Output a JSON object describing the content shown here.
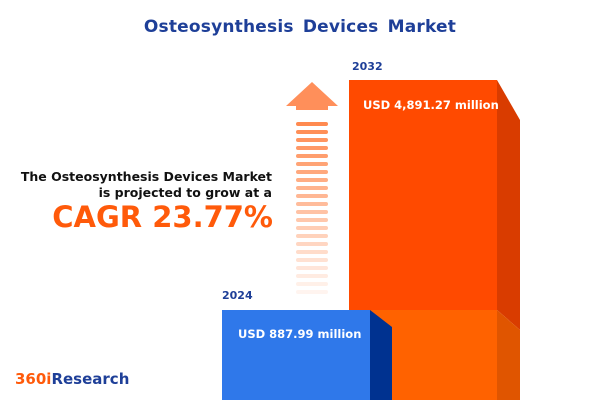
{
  "title": "Osteosynthesis Devices Market",
  "description": {
    "line1": "The Osteosynthesis Devices Market",
    "line2": "is projected to grow at a",
    "cagr": "CAGR 23.77%"
  },
  "logo": {
    "part1": "360i",
    "part2": "Research"
  },
  "colors": {
    "title": "#1e3f98",
    "accent": "#ff5a0a",
    "bar_2024": "#2f78ea",
    "bar_2032": "#ff4a00"
  },
  "chart_data": {
    "type": "bar",
    "categories": [
      "2024",
      "2032"
    ],
    "values": [
      887.99,
      4891.27
    ],
    "value_labels": [
      "USD 887.99 million",
      "USD 4,891.27 million"
    ],
    "title": "Osteosynthesis Devices Market",
    "unit": "USD million",
    "cagr": "23.77%"
  }
}
